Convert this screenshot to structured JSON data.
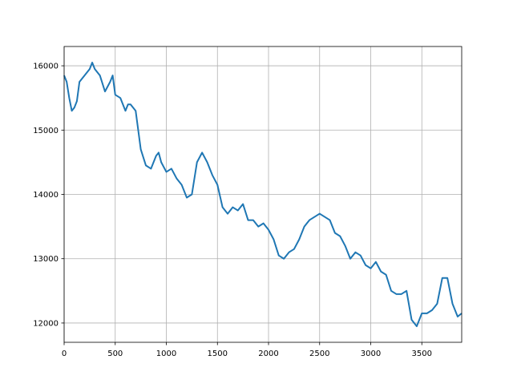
{
  "chart_data": {
    "type": "line",
    "x": [
      0,
      25,
      50,
      75,
      100,
      125,
      150,
      200,
      250,
      275,
      300,
      350,
      400,
      450,
      475,
      500,
      550,
      600,
      625,
      650,
      700,
      750,
      800,
      850,
      900,
      925,
      950,
      1000,
      1050,
      1100,
      1150,
      1200,
      1250,
      1300,
      1350,
      1400,
      1450,
      1500,
      1550,
      1600,
      1650,
      1700,
      1750,
      1800,
      1850,
      1900,
      1950,
      2000,
      2050,
      2100,
      2150,
      2200,
      2250,
      2300,
      2350,
      2400,
      2450,
      2500,
      2550,
      2600,
      2650,
      2700,
      2750,
      2800,
      2850,
      2900,
      2950,
      3000,
      3050,
      3100,
      3150,
      3200,
      3250,
      3300,
      3350,
      3400,
      3450,
      3500,
      3550,
      3600,
      3650,
      3700,
      3750,
      3800,
      3850,
      3890
    ],
    "series": [
      {
        "color": "#1f77b4",
        "values": [
          15850,
          15750,
          15500,
          15300,
          15350,
          15450,
          15750,
          15850,
          15950,
          16050,
          15950,
          15850,
          15600,
          15750,
          15850,
          15550,
          15500,
          15300,
          15400,
          15400,
          15300,
          14700,
          14450,
          14400,
          14600,
          14650,
          14500,
          14350,
          14400,
          14250,
          14150,
          13950,
          14000,
          14500,
          14650,
          14500,
          14300,
          14150,
          13800,
          13700,
          13800,
          13750,
          13850,
          13600,
          13600,
          13500,
          13550,
          13450,
          13300,
          13050,
          13000,
          13100,
          13150,
          13300,
          13500,
          13600,
          13650,
          13700,
          13650,
          13600,
          13400,
          13350,
          13200,
          13000,
          13100,
          13050,
          12900,
          12850,
          12950,
          12800,
          12750,
          12500,
          12450,
          12450,
          12500,
          12050,
          11950,
          12150,
          12150,
          12200,
          12300,
          12700,
          12700,
          12300,
          12100,
          12150
        ]
      }
    ],
    "xlim": [
      0,
      3890
    ],
    "ylim": [
      11700,
      16300
    ],
    "xticks": [
      0,
      500,
      1000,
      1500,
      2000,
      2500,
      3000,
      3500
    ],
    "yticks": [
      12000,
      13000,
      14000,
      15000,
      16000
    ],
    "grid": true
  }
}
